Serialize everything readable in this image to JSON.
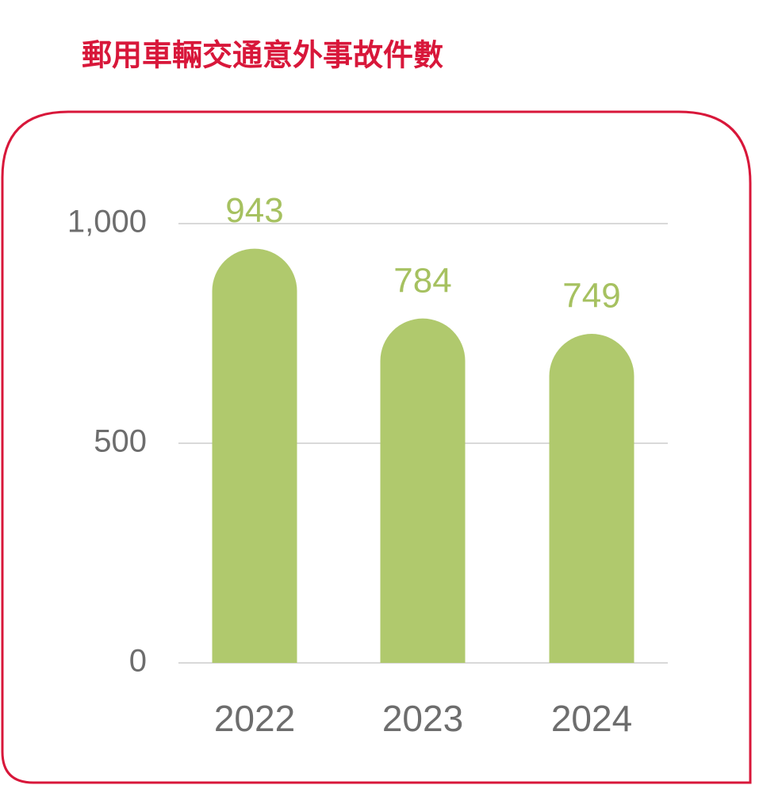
{
  "chart_data": {
    "type": "bar",
    "title": "郵用車輛交通意外事故件數",
    "categories": [
      "2022",
      "2023",
      "2024"
    ],
    "values": [
      943,
      784,
      749
    ],
    "color": "#b0c96d",
    "label_color": "#a6c160",
    "ylim": [
      0,
      1000
    ],
    "yticks": [
      0,
      500,
      {
        "value": 1000,
        "label": "1,000"
      }
    ],
    "grid": true
  }
}
